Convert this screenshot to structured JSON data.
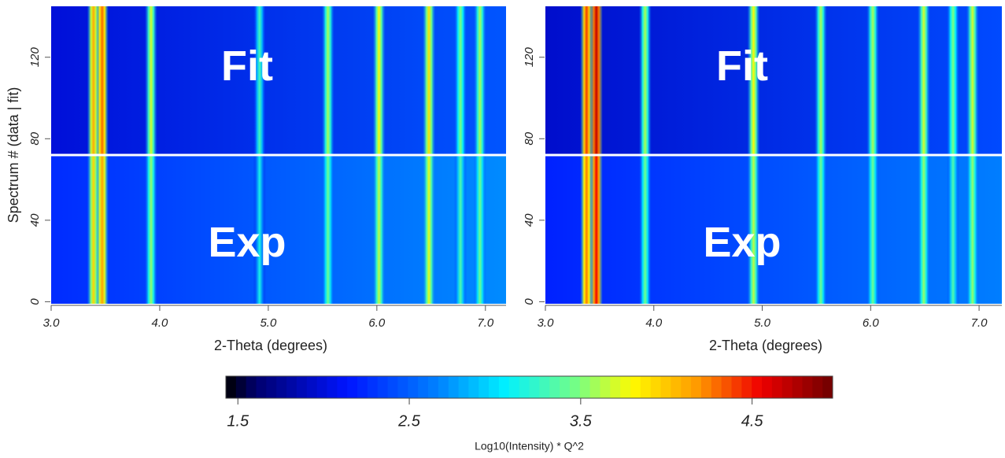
{
  "chart_data": [
    {
      "type": "heatmap",
      "xlabel": "2-Theta (degrees)",
      "ylabel": "Spectrum # (data | fit)",
      "xlim": [
        3.0,
        7.19
      ],
      "ylim": [
        -1,
        145
      ],
      "xticks": [
        {
          "value": 3,
          "label": "3.0"
        },
        {
          "value": 4,
          "label": "4.0"
        },
        {
          "value": 5,
          "label": "5.0"
        },
        {
          "value": 6,
          "label": "6.0"
        },
        {
          "value": 7,
          "label": "7.0"
        }
      ],
      "yticks": [
        0,
        40,
        80,
        120
      ],
      "regions": [
        {
          "label": "Fit",
          "ylim": [
            72,
            145
          ],
          "value": 2.0
        },
        {
          "label": "Exp",
          "ylim": [
            -1,
            72
          ],
          "value": 2.25
        }
      ],
      "peaks": {
        "x": [
          3.39,
          3.47,
          3.92,
          4.92,
          5.55,
          6.02,
          6.48,
          6.77,
          6.95
        ],
        "values": [
          4.1,
          4.3,
          3.7,
          3.3,
          3.6,
          3.8,
          3.9,
          3.5,
          3.6
        ]
      }
    },
    {
      "type": "heatmap",
      "xlabel": "2-Theta (degrees)",
      "xlim": [
        3.0,
        7.21
      ],
      "ylim": [
        -1,
        145
      ],
      "xticks": [
        {
          "value": 3,
          "label": "3.0"
        },
        {
          "value": 4,
          "label": "4.0"
        },
        {
          "value": 5,
          "label": "5.0"
        },
        {
          "value": 6,
          "label": "6.0"
        },
        {
          "value": 7,
          "label": "7.0"
        }
      ],
      "yticks": [
        0,
        40,
        80,
        120
      ],
      "regions": [
        {
          "label": "Fit",
          "ylim": [
            72,
            145
          ],
          "value": 1.95
        },
        {
          "label": "Exp",
          "ylim": [
            -1,
            72
          ],
          "value": 2.2
        }
      ],
      "peaks": {
        "x": [
          3.38,
          3.47,
          3.92,
          4.92,
          5.54,
          6.02,
          6.49,
          6.76,
          6.94
        ],
        "values": [
          4.4,
          4.7,
          3.6,
          3.8,
          3.6,
          3.6,
          3.7,
          3.5,
          3.7
        ]
      }
    },
    {
      "type": "colorbar",
      "label": "Log10(Intensity) * Q^2",
      "clim": [
        1.43,
        4.97
      ],
      "ticks": [
        1.5,
        2.5,
        3.5,
        4.5
      ]
    }
  ]
}
